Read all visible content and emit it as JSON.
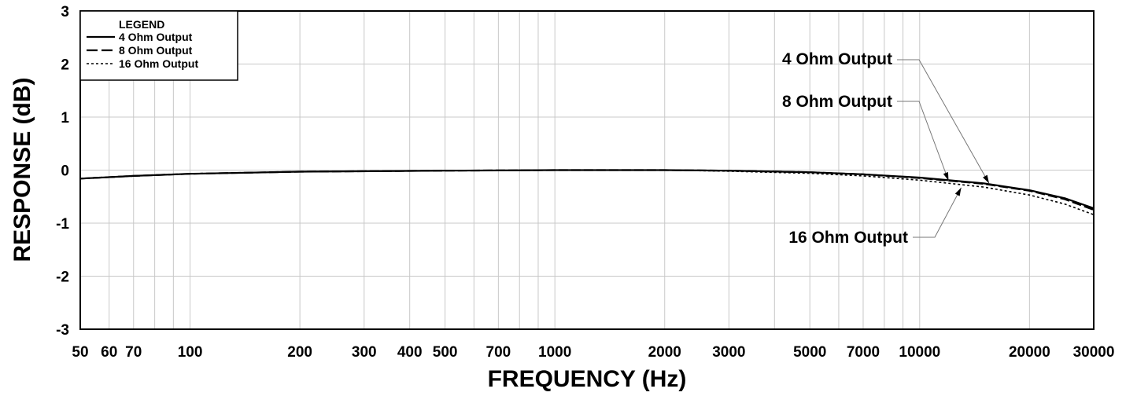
{
  "chart_data": {
    "type": "line",
    "xlabel": "FREQUENCY (Hz)",
    "ylabel": "RESPONSE (dB)",
    "x_scale": "log",
    "xlim": [
      50,
      30000
    ],
    "ylim": [
      -3,
      3
    ],
    "grid": true,
    "x_ticks": [
      50,
      60,
      70,
      100,
      200,
      300,
      400,
      500,
      700,
      1000,
      2000,
      3000,
      5000,
      7000,
      10000,
      20000,
      30000
    ],
    "x_tick_labels": [
      "50",
      "60",
      "70",
      "100",
      "200",
      "300",
      "400",
      "500",
      "700",
      "1000",
      "2000",
      "3000",
      "5000",
      "7000",
      "10000",
      "20000",
      "30000"
    ],
    "y_ticks": [
      -3,
      -2,
      -1,
      0,
      1,
      2,
      3
    ],
    "y_tick_labels": [
      "-3",
      "-2",
      "-1",
      "0",
      "1",
      "2",
      "3"
    ],
    "legend": {
      "title": "LEGEND",
      "position": "top-left",
      "entries": [
        {
          "label": "4 Ohm Output",
          "style": "solid"
        },
        {
          "label": "8 Ohm Output",
          "style": "dashed"
        },
        {
          "label": "16 Ohm Output",
          "style": "dotted"
        }
      ]
    },
    "series": [
      {
        "name": "4 Ohm Output",
        "style": "solid",
        "x": [
          50,
          70,
          100,
          200,
          500,
          1000,
          2000,
          3000,
          5000,
          7000,
          10000,
          15000,
          20000,
          25000,
          30000
        ],
        "y": [
          -0.16,
          -0.11,
          -0.07,
          -0.03,
          -0.01,
          0,
          0,
          -0.01,
          -0.04,
          -0.08,
          -0.14,
          -0.25,
          -0.38,
          -0.53,
          -0.72
        ]
      },
      {
        "name": "8 Ohm Output",
        "style": "dashed",
        "x": [
          50,
          70,
          100,
          200,
          500,
          1000,
          2000,
          3000,
          5000,
          7000,
          10000,
          15000,
          20000,
          25000,
          30000
        ],
        "y": [
          -0.16,
          -0.11,
          -0.07,
          -0.03,
          -0.01,
          0,
          0,
          -0.01,
          -0.04,
          -0.08,
          -0.15,
          -0.26,
          -0.39,
          -0.55,
          -0.75
        ]
      },
      {
        "name": "16 Ohm Output",
        "style": "dotted",
        "x": [
          50,
          70,
          100,
          200,
          500,
          1000,
          2000,
          3000,
          5000,
          7000,
          10000,
          15000,
          20000,
          25000,
          30000
        ],
        "y": [
          -0.16,
          -0.11,
          -0.07,
          -0.03,
          -0.01,
          0,
          0,
          -0.02,
          -0.06,
          -0.11,
          -0.19,
          -0.32,
          -0.47,
          -0.64,
          -0.84
        ]
      }
    ],
    "annotations": [
      {
        "text": "4 Ohm Output",
        "points_to": {
          "x": 15500,
          "y": -0.25
        }
      },
      {
        "text": "8 Ohm Output",
        "points_to": {
          "x": 12000,
          "y": -0.2
        }
      },
      {
        "text": "16 Ohm Output",
        "points_to": {
          "x": 13000,
          "y": -0.33
        }
      }
    ]
  }
}
